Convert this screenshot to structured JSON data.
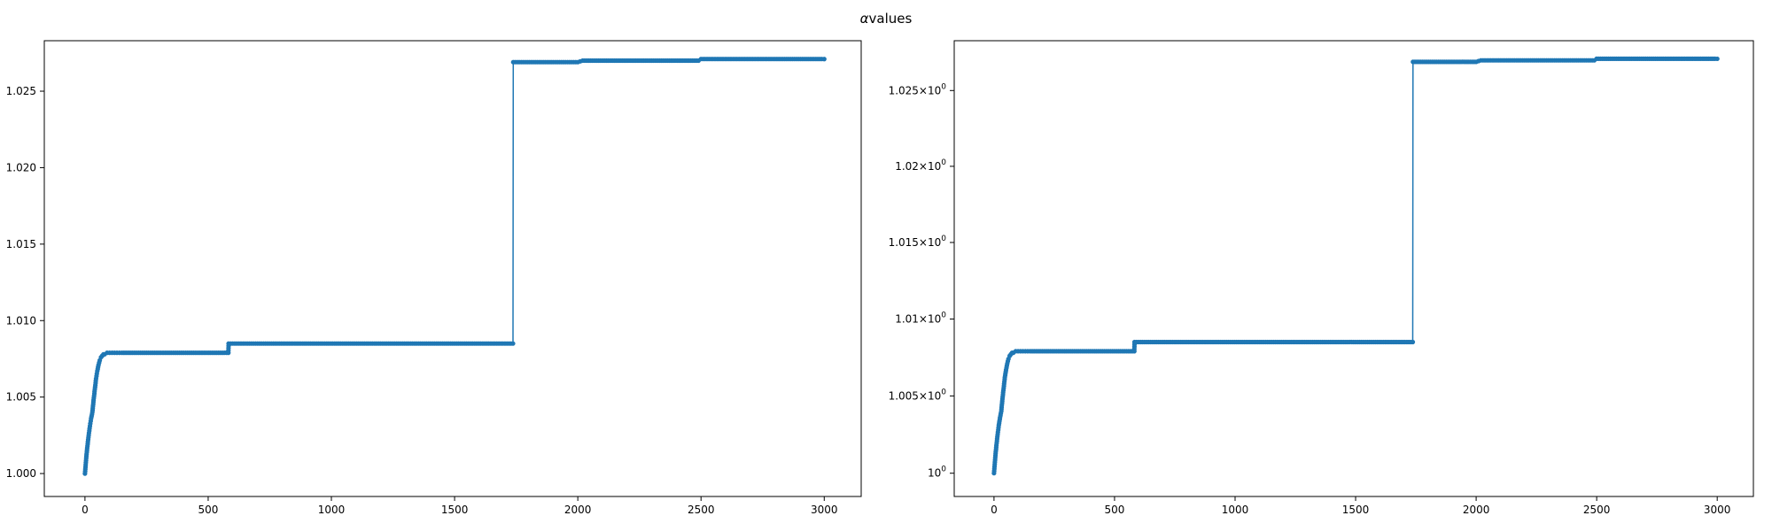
{
  "suptitle_symbol": "α",
  "suptitle_text": "values",
  "chart_data": [
    {
      "type": "line",
      "panel": "left",
      "title": "",
      "xlabel": "",
      "ylabel": "",
      "xlim": [
        -165,
        3150
      ],
      "ylim": [
        0.9985,
        1.0283
      ],
      "yscale": "linear",
      "grid": false,
      "line_color": "#1f77b4",
      "marker": "circle",
      "x_ticks": [
        0,
        500,
        1000,
        1500,
        2000,
        2500,
        3000
      ],
      "x_tick_labels": [
        "0",
        "500",
        "1000",
        "1500",
        "2000",
        "2500",
        "3000"
      ],
      "y_ticks": [
        1.0,
        1.005,
        1.01,
        1.015,
        1.02,
        1.025
      ],
      "y_tick_labels": [
        "1.000",
        "1.005",
        "1.010",
        "1.015",
        "1.020",
        "1.025"
      ],
      "series": [
        {
          "x": [
            0,
            5,
            10,
            15,
            20,
            25,
            30,
            35,
            40,
            45,
            50,
            55,
            60,
            65,
            70,
            75,
            80,
            90,
            100,
            120,
            150,
            200,
            300,
            400,
            500,
            582,
            583,
            700,
            900,
            1200,
            1500,
            1737,
            1738,
            1900,
            2000,
            2020,
            2300,
            2490,
            2500,
            2800,
            2990,
            3000
          ],
          "y": [
            1.0,
            1.001,
            1.0018,
            1.0025,
            1.0031,
            1.0036,
            1.004,
            1.0048,
            1.0055,
            1.0062,
            1.0067,
            1.0071,
            1.0074,
            1.0076,
            1.0077,
            1.0078,
            1.0078,
            1.0079,
            1.0079,
            1.0079,
            1.0079,
            1.0079,
            1.0079,
            1.0079,
            1.0079,
            1.0079,
            1.0085,
            1.0085,
            1.0085,
            1.0085,
            1.0085,
            1.0085,
            1.0269,
            1.0269,
            1.0269,
            1.027,
            1.027,
            1.027,
            1.0271,
            1.0271,
            1.0271,
            1.0271
          ]
        }
      ]
    },
    {
      "type": "line",
      "panel": "right",
      "title": "",
      "xlabel": "",
      "ylabel": "",
      "xlim": [
        -165,
        3150
      ],
      "ylim": [
        0.9985,
        1.0283
      ],
      "yscale": "log",
      "grid": false,
      "line_color": "#1f77b4",
      "marker": "circle",
      "x_ticks": [
        0,
        500,
        1000,
        1500,
        2000,
        2500,
        3000
      ],
      "x_tick_labels": [
        "0",
        "500",
        "1000",
        "1500",
        "2000",
        "2500",
        "3000"
      ],
      "y_ticks": [
        1.0,
        1.005,
        1.01,
        1.015,
        1.02,
        1.025
      ],
      "y_tick_mantissas": [
        "",
        "1.005",
        "1.01",
        "1.015",
        "1.02",
        "1.025"
      ],
      "y_tick_base": "10",
      "y_tick_exponent": "0",
      "series": [
        {
          "x": [
            0,
            5,
            10,
            15,
            20,
            25,
            30,
            35,
            40,
            45,
            50,
            55,
            60,
            65,
            70,
            75,
            80,
            90,
            100,
            120,
            150,
            200,
            300,
            400,
            500,
            582,
            583,
            700,
            900,
            1200,
            1500,
            1737,
            1738,
            1900,
            2000,
            2020,
            2300,
            2490,
            2500,
            2800,
            2990,
            3000
          ],
          "y": [
            1.0,
            1.001,
            1.0018,
            1.0025,
            1.0031,
            1.0036,
            1.004,
            1.0048,
            1.0055,
            1.0062,
            1.0067,
            1.0071,
            1.0074,
            1.0076,
            1.0077,
            1.0078,
            1.0078,
            1.0079,
            1.0079,
            1.0079,
            1.0079,
            1.0079,
            1.0079,
            1.0079,
            1.0079,
            1.0079,
            1.0085,
            1.0085,
            1.0085,
            1.0085,
            1.0085,
            1.0085,
            1.0269,
            1.0269,
            1.0269,
            1.027,
            1.027,
            1.027,
            1.0271,
            1.0271,
            1.0271,
            1.0271
          ]
        }
      ]
    }
  ]
}
